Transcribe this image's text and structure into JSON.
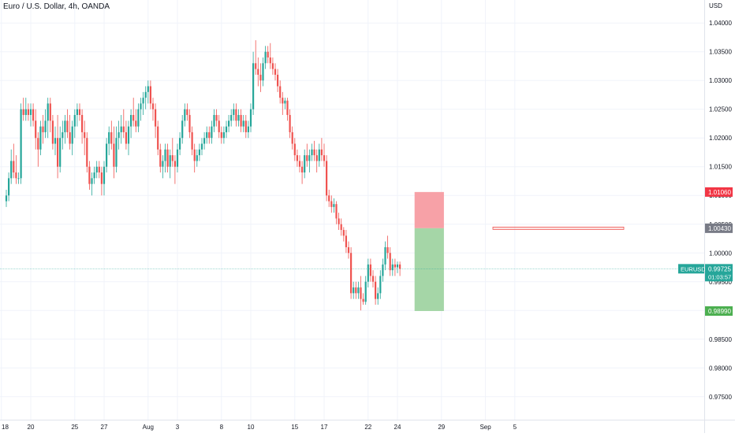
{
  "chart_data": {
    "type": "candlestick",
    "title": "Euro / U.S. Dollar, 4h, OANDA",
    "y_unit": "USD",
    "ylim": [
      0.971,
      1.044
    ],
    "y_ticks": [
      "1.04000",
      "1.03500",
      "1.03000",
      "1.02500",
      "1.02000",
      "1.01500",
      "1.01000",
      "1.00500",
      "1.00000",
      "0.99500",
      "0.99000",
      "0.98500",
      "0.98000",
      "0.97500"
    ],
    "x_ticks": [
      {
        "label": "18",
        "bar": -2
      },
      {
        "label": "20",
        "bar": 10
      },
      {
        "label": "25",
        "bar": 28
      },
      {
        "label": "27",
        "bar": 40
      },
      {
        "label": "Aug",
        "bar": 58
      },
      {
        "label": "3",
        "bar": 70
      },
      {
        "label": "8",
        "bar": 88
      },
      {
        "label": "10",
        "bar": 100
      },
      {
        "label": "15",
        "bar": 118
      },
      {
        "label": "17",
        "bar": 130
      },
      {
        "label": "22",
        "bar": 148
      },
      {
        "label": "24",
        "bar": 160
      },
      {
        "label": "29",
        "bar": 178
      },
      {
        "label": "Sep",
        "bar": 196
      },
      {
        "label": "5",
        "bar": 208
      }
    ],
    "up_color": "#26a69a",
    "down_color": "#ef5350",
    "series": [
      {
        "name": "EURUSD",
        "candles": [
          [
            1.009,
            1.011,
            1.008,
            1.01
          ],
          [
            1.01,
            1.014,
            1.009,
            1.013
          ],
          [
            1.013,
            1.018,
            1.012,
            1.016
          ],
          [
            1.016,
            1.019,
            1.013,
            1.014
          ],
          [
            1.014,
            1.017,
            1.012,
            1.013
          ],
          [
            1.013,
            1.014,
            1.012,
            1.013
          ],
          [
            1.013,
            1.026,
            1.012,
            1.025
          ],
          [
            1.025,
            1.027,
            1.023,
            1.024
          ],
          [
            1.024,
            1.027,
            1.023,
            1.025
          ],
          [
            1.025,
            1.026,
            1.023,
            1.024
          ],
          [
            1.024,
            1.026,
            1.022,
            1.025
          ],
          [
            1.025,
            1.026,
            1.022,
            1.023
          ],
          [
            1.023,
            1.025,
            1.018,
            1.02
          ],
          [
            1.02,
            1.021,
            1.015,
            1.018
          ],
          [
            1.018,
            1.023,
            1.017,
            1.022
          ],
          [
            1.022,
            1.024,
            1.019,
            1.021
          ],
          [
            1.021,
            1.025,
            1.02,
            1.023
          ],
          [
            1.023,
            1.027,
            1.02,
            1.026
          ],
          [
            1.026,
            1.027,
            1.021,
            1.023
          ],
          [
            1.023,
            1.024,
            1.018,
            1.019
          ],
          [
            1.019,
            1.022,
            1.017,
            1.02
          ],
          [
            1.02,
            1.024,
            1.013,
            1.015
          ],
          [
            1.015,
            1.022,
            1.014,
            1.02
          ],
          [
            1.02,
            1.023,
            1.018,
            1.021
          ],
          [
            1.021,
            1.024,
            1.019,
            1.023
          ],
          [
            1.023,
            1.025,
            1.02,
            1.021
          ],
          [
            1.021,
            1.024,
            1.018,
            1.019
          ],
          [
            1.019,
            1.023,
            1.017,
            1.022
          ],
          [
            1.022,
            1.025,
            1.02,
            1.024
          ],
          [
            1.024,
            1.026,
            1.022,
            1.025
          ],
          [
            1.025,
            1.026,
            1.023,
            1.024
          ],
          [
            1.024,
            1.025,
            1.019,
            1.021
          ],
          [
            1.021,
            1.023,
            1.017,
            1.02
          ],
          [
            1.02,
            1.021,
            1.014,
            1.015
          ],
          [
            1.015,
            1.016,
            1.011,
            1.012
          ],
          [
            1.012,
            1.014,
            1.01,
            1.013
          ],
          [
            1.013,
            1.015,
            1.012,
            1.014
          ],
          [
            1.014,
            1.016,
            1.013,
            1.015
          ],
          [
            1.015,
            1.016,
            1.013,
            1.014
          ],
          [
            1.014,
            1.015,
            1.01,
            1.012
          ],
          [
            1.012,
            1.016,
            1.01,
            1.015
          ],
          [
            1.015,
            1.02,
            1.014,
            1.019
          ],
          [
            1.019,
            1.022,
            1.017,
            1.021
          ],
          [
            1.021,
            1.023,
            1.018,
            1.019
          ],
          [
            1.019,
            1.022,
            1.013,
            1.015
          ],
          [
            1.015,
            1.022,
            1.014,
            1.02
          ],
          [
            1.02,
            1.023,
            1.018,
            1.021
          ],
          [
            1.021,
            1.024,
            1.019,
            1.022
          ],
          [
            1.022,
            1.025,
            1.02,
            1.021
          ],
          [
            1.021,
            1.023,
            1.018,
            1.019
          ],
          [
            1.019,
            1.023,
            1.017,
            1.022
          ],
          [
            1.022,
            1.025,
            1.02,
            1.024
          ],
          [
            1.024,
            1.027,
            1.022,
            1.023
          ],
          [
            1.023,
            1.025,
            1.021,
            1.022
          ],
          [
            1.022,
            1.026,
            1.021,
            1.025
          ],
          [
            1.025,
            1.027,
            1.023,
            1.026
          ],
          [
            1.026,
            1.028,
            1.024,
            1.027
          ],
          [
            1.027,
            1.029,
            1.025,
            1.028
          ],
          [
            1.028,
            1.03,
            1.026,
            1.029
          ],
          [
            1.029,
            1.03,
            1.025,
            1.026
          ],
          [
            1.026,
            1.027,
            1.023,
            1.025
          ],
          [
            1.025,
            1.026,
            1.02,
            1.022
          ],
          [
            1.022,
            1.023,
            1.017,
            1.018
          ],
          [
            1.018,
            1.019,
            1.014,
            1.015
          ],
          [
            1.015,
            1.017,
            1.013,
            1.016
          ],
          [
            1.016,
            1.019,
            1.014,
            1.018
          ],
          [
            1.018,
            1.019,
            1.014,
            1.015
          ],
          [
            1.015,
            1.018,
            1.013,
            1.017
          ],
          [
            1.017,
            1.02,
            1.015,
            1.016
          ],
          [
            1.016,
            1.017,
            1.012,
            1.015
          ],
          [
            1.015,
            1.019,
            1.014,
            1.018
          ],
          [
            1.018,
            1.021,
            1.017,
            1.02
          ],
          [
            1.02,
            1.024,
            1.019,
            1.023
          ],
          [
            1.023,
            1.026,
            1.022,
            1.025
          ],
          [
            1.025,
            1.026,
            1.023,
            1.024
          ],
          [
            1.024,
            1.025,
            1.02,
            1.021
          ],
          [
            1.021,
            1.022,
            1.017,
            1.018
          ],
          [
            1.018,
            1.019,
            1.014,
            1.016
          ],
          [
            1.016,
            1.018,
            1.015,
            1.017
          ],
          [
            1.017,
            1.019,
            1.016,
            1.018
          ],
          [
            1.018,
            1.02,
            1.017,
            1.019
          ],
          [
            1.019,
            1.021,
            1.018,
            1.02
          ],
          [
            1.02,
            1.022,
            1.019,
            1.021
          ],
          [
            1.021,
            1.022,
            1.019,
            1.02
          ],
          [
            1.02,
            1.023,
            1.019,
            1.022
          ],
          [
            1.022,
            1.025,
            1.021,
            1.024
          ],
          [
            1.024,
            1.025,
            1.022,
            1.023
          ],
          [
            1.023,
            1.024,
            1.02,
            1.021
          ],
          [
            1.021,
            1.022,
            1.019,
            1.02
          ],
          [
            1.02,
            1.022,
            1.019,
            1.021
          ],
          [
            1.021,
            1.023,
            1.02,
            1.022
          ],
          [
            1.022,
            1.024,
            1.021,
            1.023
          ],
          [
            1.023,
            1.025,
            1.022,
            1.024
          ],
          [
            1.024,
            1.026,
            1.023,
            1.025
          ],
          [
            1.025,
            1.026,
            1.022,
            1.023
          ],
          [
            1.023,
            1.025,
            1.022,
            1.024
          ],
          [
            1.024,
            1.025,
            1.021,
            1.022
          ],
          [
            1.022,
            1.024,
            1.021,
            1.023
          ],
          [
            1.023,
            1.024,
            1.02,
            1.021
          ],
          [
            1.021,
            1.023,
            1.02,
            1.022
          ],
          [
            1.022,
            1.026,
            1.021,
            1.025
          ],
          [
            1.025,
            1.035,
            1.024,
            1.033
          ],
          [
            1.033,
            1.037,
            1.031,
            1.032
          ],
          [
            1.032,
            1.034,
            1.029,
            1.031
          ],
          [
            1.031,
            1.033,
            1.028,
            1.03
          ],
          [
            1.03,
            1.034,
            1.029,
            1.033
          ],
          [
            1.033,
            1.036,
            1.032,
            1.035
          ],
          [
            1.035,
            1.036,
            1.033,
            1.034
          ],
          [
            1.034,
            1.0365,
            1.032,
            1.033
          ],
          [
            1.033,
            1.034,
            1.031,
            1.032
          ],
          [
            1.032,
            1.033,
            1.03,
            1.031
          ],
          [
            1.031,
            1.032,
            1.028,
            1.029
          ],
          [
            1.029,
            1.03,
            1.026,
            1.027
          ],
          [
            1.027,
            1.028,
            1.024,
            1.026
          ],
          [
            1.026,
            1.027,
            1.025,
            1.0265
          ],
          [
            1.0265,
            1.027,
            1.023,
            1.024
          ],
          [
            1.024,
            1.025,
            1.02,
            1.021
          ],
          [
            1.021,
            1.022,
            1.018,
            1.019
          ],
          [
            1.019,
            1.02,
            1.016,
            1.017
          ],
          [
            1.017,
            1.018,
            1.015,
            1.016
          ],
          [
            1.016,
            1.017,
            1.014,
            1.015
          ],
          [
            1.015,
            1.016,
            1.012,
            1.014
          ],
          [
            1.014,
            1.018,
            1.013,
            1.017
          ],
          [
            1.017,
            1.019,
            1.015,
            1.016
          ],
          [
            1.016,
            1.018,
            1.014,
            1.017
          ],
          [
            1.017,
            1.019,
            1.016,
            1.018
          ],
          [
            1.018,
            1.0195,
            1.016,
            1.017
          ],
          [
            1.017,
            1.018,
            1.014,
            1.016
          ],
          [
            1.016,
            1.019,
            1.015,
            1.018
          ],
          [
            1.018,
            1.02,
            1.016,
            1.017
          ],
          [
            1.017,
            1.019,
            1.015,
            1.016
          ],
          [
            1.016,
            1.017,
            1.009,
            1.01
          ],
          [
            1.01,
            1.011,
            1.008,
            1.009
          ],
          [
            1.009,
            1.01,
            1.007,
            1.008
          ],
          [
            1.008,
            1.0095,
            1.007,
            1.0085
          ],
          [
            1.0085,
            1.009,
            1.005,
            1.006
          ],
          [
            1.006,
            1.007,
            1.004,
            1.005
          ],
          [
            1.005,
            1.006,
            1.003,
            1.004
          ],
          [
            1.004,
            1.0045,
            1.002,
            1.003
          ],
          [
            1.003,
            1.004,
            1.0,
            1.001
          ],
          [
            1.001,
            1.002,
            0.999,
            1.0
          ],
          [
            1.0,
            1.001,
            0.992,
            0.993
          ],
          [
            0.993,
            0.995,
            0.992,
            0.994
          ],
          [
            0.994,
            0.995,
            0.992,
            0.993
          ],
          [
            0.993,
            0.995,
            0.992,
            0.994
          ],
          [
            0.994,
            0.996,
            0.99,
            0.992
          ],
          [
            0.992,
            0.993,
            0.991,
            0.9915
          ],
          [
            0.9915,
            0.996,
            0.991,
            0.995
          ],
          [
            0.995,
            0.999,
            0.994,
            0.998
          ],
          [
            0.998,
            0.999,
            0.995,
            0.996
          ],
          [
            0.996,
            0.997,
            0.994,
            0.995
          ],
          [
            0.995,
            0.996,
            0.991,
            0.992
          ],
          [
            0.992,
            0.994,
            0.991,
            0.993
          ],
          [
            0.993,
            0.997,
            0.992,
            0.996
          ],
          [
            0.996,
            0.999,
            0.995,
            0.998
          ],
          [
            0.998,
            1.002,
            0.997,
            1.001
          ],
          [
            1.001,
            1.003,
            0.999,
            1.0
          ],
          [
            1.0,
            1.001,
            0.996,
            0.997
          ],
          [
            0.997,
            0.999,
            0.996,
            0.998
          ],
          [
            0.998,
            0.999,
            0.996,
            0.9975
          ],
          [
            0.9975,
            0.9985,
            0.9965,
            0.998
          ],
          [
            0.998,
            0.9985,
            0.996,
            0.99725
          ]
        ]
      }
    ],
    "last_price": {
      "label": "EURUSD",
      "value": "0.99725",
      "countdown": "01:03:57",
      "color": "#26a69a"
    },
    "levels": [
      {
        "value": "1.01060",
        "color": "#f23645"
      },
      {
        "value": "1.00430",
        "color": "#787b86"
      },
      {
        "value": "0.98990",
        "color": "#4caf50"
      }
    ],
    "position": {
      "entry": 1.0043,
      "stop": 1.0106,
      "target": 0.9899,
      "start_bar": 167,
      "end_bar": 179
    },
    "grid": true
  }
}
